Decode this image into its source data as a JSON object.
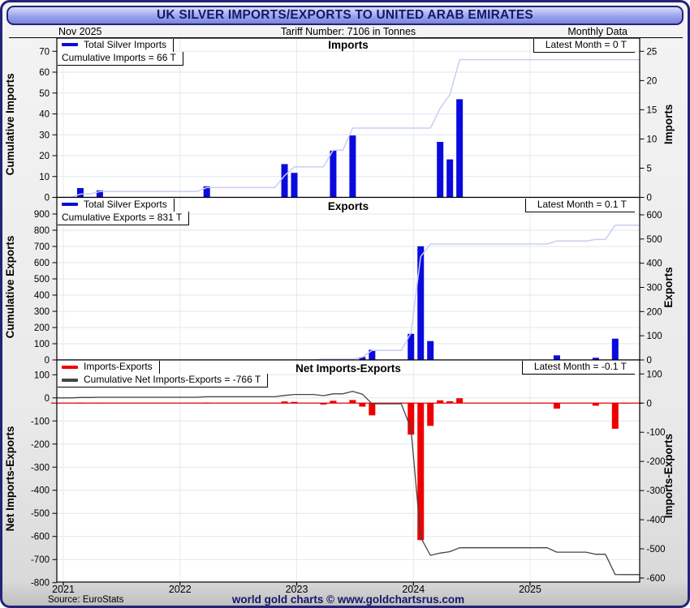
{
  "window": {
    "title": "UK SILVER IMPORTS/EXPORTS TO UNITED ARAB EMIRATES"
  },
  "subtitle": {
    "date": "Nov  2025",
    "tariff": "Tariff Number: 7106 in Tonnes",
    "period": "Monthly Data"
  },
  "footer": {
    "source": "Source: EuroStats",
    "brand": "world gold charts © www.goldchartsrus.com"
  },
  "colors": {
    "navy": "#16166b",
    "bar_blue": "#0a0adf",
    "cumulative_light": "#c9cdf2",
    "bar_red": "#ee0000",
    "zero_line_red": "#e00000",
    "cumulative_dark": "#444444",
    "grid": "#dde7f1",
    "year_grid": "#e3ebf4"
  },
  "x_axis": {
    "start_year": 2021,
    "end_label": "Nov 2025",
    "year_labels": [
      "2021",
      "2022",
      "2023",
      "2024",
      "2025"
    ]
  },
  "chart_data": [
    {
      "type": "bar",
      "title": "Imports",
      "latest": "Latest Month = 0 T",
      "legend": [
        {
          "label": "Total Silver Imports",
          "color": "#0a0adf"
        },
        {
          "label": "Cumulative Imports = 66 T",
          "color": null
        }
      ],
      "left_axis": {
        "label": "Cumulative Imports",
        "min": 0,
        "max": 70,
        "step": 10
      },
      "right_axis": {
        "label": "Imports",
        "min": 0,
        "max": 25,
        "step": 5
      },
      "bars_axis": "right",
      "bars_color": "#0a0adf",
      "bars": {
        "2021-03": 1.6,
        "2021-05": 1.2,
        "2022-04": 1.9,
        "2022-12": 5.7,
        "2023-01": 4.2,
        "2023-05": 8.0,
        "2023-07": 10.6,
        "2024-04": 9.5,
        "2024-05": 6.5,
        "2024-06": 16.8
      },
      "line": {
        "mode": "cumulative_of_bars",
        "axis": "left",
        "color": "#c9cdf2",
        "width": 1.5,
        "end_value": 66
      }
    },
    {
      "type": "bar",
      "title": "Exports",
      "latest": "Latest Month = 0.1 T",
      "legend": [
        {
          "label": "Total Silver Exports",
          "color": "#0a0adf"
        },
        {
          "label": "Cumulative Exports = 831 T",
          "color": null
        }
      ],
      "left_axis": {
        "label": "Cumulative Exports",
        "min": 0,
        "max": 900,
        "step": 100
      },
      "right_axis": {
        "label": "Exports",
        "min": 0,
        "max": 600,
        "step": 100
      },
      "bars_axis": "right",
      "bars_color": "#0a0adf",
      "bars": {
        "2023-04": 5,
        "2023-08": 12,
        "2023-09": 42,
        "2024-01": 108,
        "2024-02": 470,
        "2024-03": 78,
        "2025-04": 19,
        "2025-08": 9,
        "2025-10": 88,
        "2025-11": 0.1
      },
      "line": {
        "mode": "cumulative_of_bars",
        "axis": "left",
        "color": "#c9cdf2",
        "width": 1.5,
        "end_value": 831
      }
    },
    {
      "type": "bar",
      "title": "Net Imports-Exports",
      "latest": "Latest Month = -0.1 T",
      "legend": [
        {
          "label": "Imports-Exports",
          "color": "#ee0000"
        },
        {
          "label": "Cumulative Net Imports-Exports = -766 T",
          "color": "#444444"
        }
      ],
      "left_axis": {
        "label": "Net Imports-Exports",
        "min": -800,
        "max": 100,
        "step": 100
      },
      "right_axis": {
        "label": "Imports-Exports",
        "min": -600,
        "max": 100,
        "step": 100
      },
      "bars_axis": "right",
      "bars_color": "#ee0000",
      "zero_line_color": "#e00000",
      "bars": {
        "2021-03": 1.6,
        "2021-05": 1.2,
        "2022-04": 1.9,
        "2022-12": 5.7,
        "2023-01": 4.2,
        "2023-04": -5,
        "2023-05": 8.0,
        "2023-07": 10.6,
        "2023-08": -12,
        "2023-09": -42,
        "2024-01": -108,
        "2024-02": -470,
        "2024-03": -78,
        "2024-04": 9.5,
        "2024-05": 6.5,
        "2024-06": 16.8,
        "2025-04": -19,
        "2025-08": -9,
        "2025-10": -88,
        "2025-11": -0.1
      },
      "line": {
        "mode": "cumulative_of_bars",
        "axis": "left",
        "color": "#444444",
        "width": 1.3,
        "end_value": -766
      }
    }
  ]
}
